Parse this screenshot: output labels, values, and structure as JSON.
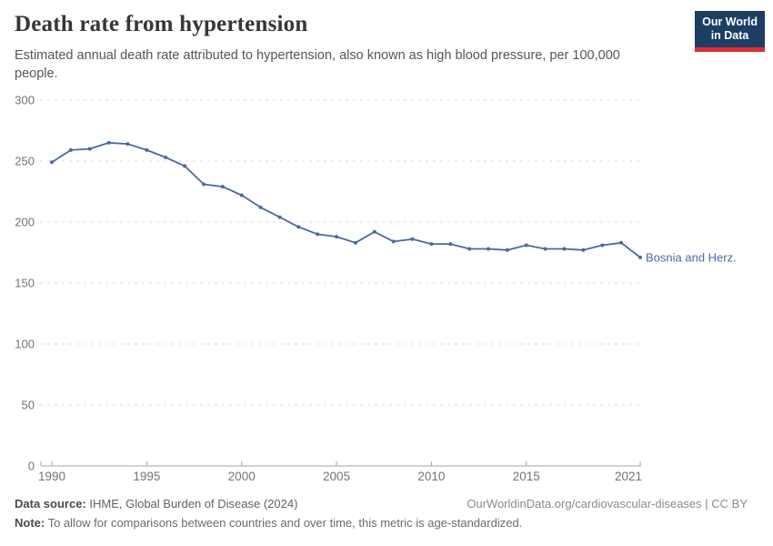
{
  "header": {
    "title": "Death rate from hypertension",
    "subtitle": "Estimated annual death rate attributed to hypertension, also known as high blood pressure, per 100,000 people.",
    "logo": {
      "line1": "Our World",
      "line2": "in Data",
      "bg_color": "#1d3d63",
      "accent_color": "#dc2e34"
    }
  },
  "chart_data": {
    "type": "line",
    "title": "Death rate from hypertension",
    "xlabel": "",
    "ylabel": "",
    "ylim": [
      0,
      300
    ],
    "yticks": [
      0,
      50,
      100,
      150,
      200,
      250,
      300
    ],
    "xticks": [
      1990,
      1995,
      2000,
      2005,
      2010,
      2015,
      2021
    ],
    "grid": "horizontal-dashed",
    "legend_position": "end-of-line-label",
    "axis_color": "#a5a5a5",
    "grid_color": "#dcdcdc",
    "tick_label_color": "#737373",
    "x": [
      1990,
      1991,
      1992,
      1993,
      1994,
      1995,
      1996,
      1997,
      1998,
      1999,
      2000,
      2001,
      2002,
      2003,
      2004,
      2005,
      2006,
      2007,
      2008,
      2009,
      2010,
      2011,
      2012,
      2013,
      2014,
      2015,
      2016,
      2017,
      2018,
      2019,
      2020,
      2021
    ],
    "series": [
      {
        "name": "Bosnia and Herz.",
        "color": "#4C6A9C",
        "values": [
          249,
          259,
          260,
          265,
          264,
          259,
          253,
          246,
          231,
          229,
          222,
          212,
          204,
          196,
          190,
          188,
          183,
          192,
          184,
          186,
          182,
          182,
          178,
          178,
          177,
          181,
          178,
          178,
          177,
          181,
          183,
          171
        ]
      }
    ]
  },
  "footer": {
    "data_source_label": "Data source:",
    "data_source": " IHME, Global Burden of Disease (2024)",
    "attribution": "OurWorldinData.org/cardiovascular-diseases | CC BY",
    "note_label": "Note:",
    "note": " To allow for comparisons between countries and over time, this metric is age-standardized."
  }
}
